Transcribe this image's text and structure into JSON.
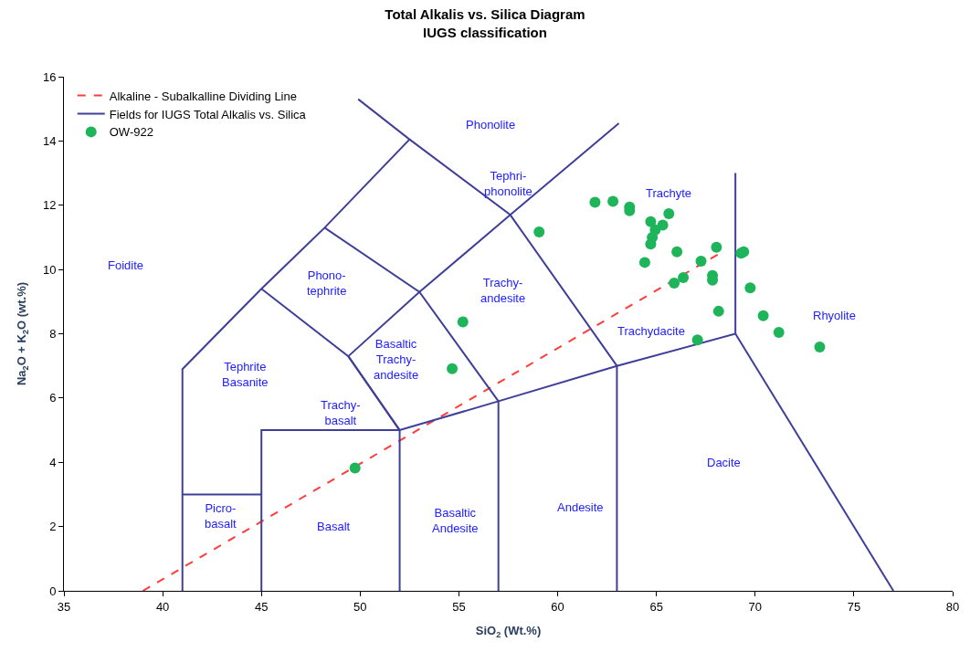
{
  "chart_data": {
    "type": "scatter",
    "title": "Total Alkalis vs. Silica Diagram\nIUGS classification",
    "xlabel": "SiO$_{2}$ (Wt.%)",
    "ylabel": "Na$_{2}$O + K$_{2}$O (wt.%)",
    "xlim": [
      35,
      80
    ],
    "xticks": [
      35,
      40,
      45,
      50,
      55,
      60,
      65,
      70,
      75,
      80
    ],
    "ylim": [
      0,
      16
    ],
    "yticks": [
      0,
      2,
      4,
      6,
      8,
      10,
      12,
      14,
      16
    ],
    "grid": false,
    "legend": "top left",
    "series": [
      {
        "name": "Alkaline - Subalkalline Dividing Line",
        "type": "line",
        "line_style": "dashed",
        "marker": "none",
        "color": "#ff3b3b",
        "x": [
          39,
          68.2
        ],
        "values": [
          0,
          10.5
        ]
      },
      {
        "name": "Fields for IUGS Total Alkalis vs. Silica",
        "type": "line",
        "line_style": "solid",
        "marker": "none",
        "color": "#3f3f9a",
        "x": [
          41,
          41,
          45,
          48.2,
          52.5,
          49.9,
          null,
          41,
          45,
          null,
          45,
          45,
          52,
          57,
          63,
          69,
          69,
          null,
          69,
          77,
          null,
          52,
          52,
          null,
          57,
          57,
          null,
          63,
          63,
          null,
          45,
          49.4,
          52,
          null,
          49.4,
          53,
          57.6,
          63.1,
          null,
          48.2,
          53,
          57,
          null,
          52.5,
          57.6,
          63,
          null,
          52,
          49.4
        ],
        "values": [
          0,
          6.9,
          9.4,
          11.3,
          14.05,
          15.3,
          null,
          3,
          3,
          null,
          0,
          5,
          5,
          5.9,
          7,
          8,
          13,
          null,
          8,
          0,
          null,
          0,
          5,
          null,
          0,
          5.9,
          null,
          0,
          7,
          null,
          9.4,
          7.3,
          5,
          null,
          7.3,
          9.3,
          11.7,
          14.55,
          null,
          11.3,
          9.3,
          5.9,
          null,
          14.05,
          11.7,
          7,
          null,
          5,
          7.3
        ]
      },
      {
        "name": "OW-922",
        "marker": "circle",
        "color": "#1db45a",
        "x": [
          61.89,
          62.8,
          63.64,
          63.64,
          65.63,
          64.71,
          65.32,
          64.94,
          64.79,
          64.71,
          59.06,
          66.04,
          68.04,
          69.29,
          69.42,
          64.41,
          67.26,
          66.36,
          65.9,
          67.84,
          67.84,
          69.75,
          68.15,
          70.41,
          71.2,
          67.08,
          73.27,
          55.2,
          54.66,
          49.74
        ],
        "values": [
          12.09,
          12.12,
          11.94,
          11.83,
          11.74,
          11.49,
          11.38,
          11.23,
          11.0,
          10.79,
          11.17,
          10.55,
          10.69,
          10.51,
          10.55,
          10.22,
          10.26,
          9.75,
          9.58,
          9.81,
          9.67,
          9.43,
          8.7,
          8.56,
          8.04,
          7.81,
          7.59,
          8.37,
          6.91,
          3.82
        ]
      }
    ],
    "annotations": [
      "Foidite",
      "Phonolite",
      "Tephri-\nphonolite",
      "Phono-\ntephrite",
      "Trachy-\nandesite",
      "Tephrite\nBasanite",
      "Basaltic\nTrachy-\nandesite",
      "Trachy-\nbasalt",
      "Trachyte",
      "Trachydacite",
      "Rhyolite",
      "Dacite",
      "Andesite",
      "Basaltic\nAndesite",
      "Basalt",
      "Picro-\nbasalt"
    ]
  }
}
